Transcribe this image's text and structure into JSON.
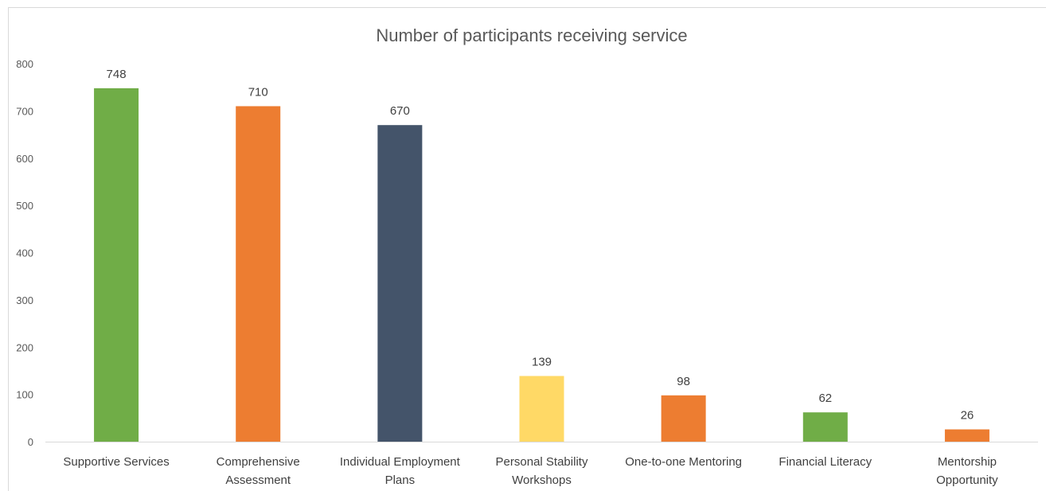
{
  "chart_data": {
    "type": "bar",
    "title": "Number of participants receiving service",
    "xlabel": "",
    "ylabel": "",
    "ylim": [
      0,
      800
    ],
    "yticks": [
      0,
      100,
      200,
      300,
      400,
      500,
      600,
      700,
      800
    ],
    "grid": false,
    "legend": "none",
    "categories": [
      "Supportive Services",
      "Comprehensive Assessment",
      "Individual Employment Plans",
      "Personal Stability Workshops",
      "One-to-one Mentoring",
      "Financial Literacy",
      "Mentorship Opportunity"
    ],
    "category_lines": [
      [
        "Supportive Services"
      ],
      [
        "Comprehensive",
        "Assessment"
      ],
      [
        "Individual Employment",
        "Plans"
      ],
      [
        "Personal Stability",
        "Workshops"
      ],
      [
        "One-to-one Mentoring"
      ],
      [
        "Financial Literacy"
      ],
      [
        "Mentorship",
        "Opportunity"
      ]
    ],
    "values": [
      748,
      710,
      670,
      139,
      98,
      62,
      26
    ],
    "data_labels": [
      "748",
      "710",
      "670",
      "139",
      "98",
      "62",
      "26"
    ],
    "colors": [
      "#70ad47",
      "#ed7d31",
      "#44546a",
      "#ffd966",
      "#ed7d31",
      "#70ad47",
      "#ed7d31"
    ]
  },
  "style": {
    "axis_color": "#d9d9d9"
  }
}
